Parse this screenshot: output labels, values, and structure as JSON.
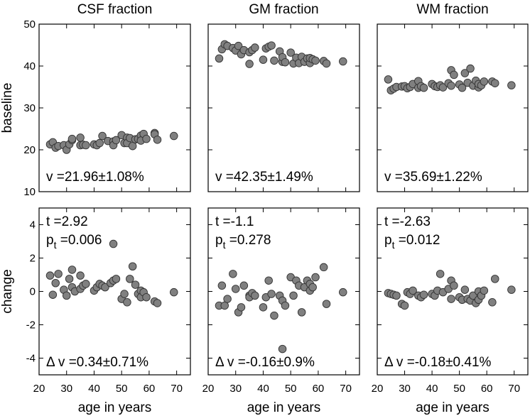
{
  "colors": {
    "marker_fill": "#808080",
    "marker_edge": "#333333",
    "axis": "#000000"
  },
  "chart_data": {
    "type": "scatter",
    "layout": "2x3 grid",
    "columns": [
      "CSF fraction",
      "GM fraction",
      "WM fraction"
    ],
    "xlabel": "age in years",
    "xlim": [
      20,
      75
    ],
    "xticks": [
      20,
      30,
      40,
      50,
      60,
      70
    ],
    "rows": [
      {
        "ylabel": "baseline",
        "ylim": [
          10,
          50
        ],
        "yticks": [
          10,
          20,
          30,
          40,
          50
        ]
      },
      {
        "ylabel": "change",
        "ylim": [
          -5,
          5
        ],
        "yticks": [
          -4,
          -2,
          0,
          2,
          4
        ]
      }
    ],
    "panels": [
      {
        "row": 0,
        "col": 0,
        "stat_v": "v =21.96±1.08%",
        "points": [
          [
            24,
            21.3
          ],
          [
            25,
            21.8
          ],
          [
            26,
            20.5
          ],
          [
            27,
            20.9
          ],
          [
            29,
            21.1
          ],
          [
            30,
            20.0
          ],
          [
            31,
            21.3
          ],
          [
            32,
            22.3
          ],
          [
            32,
            22.6
          ],
          [
            35,
            21.1
          ],
          [
            35,
            22.9
          ],
          [
            36,
            21.2
          ],
          [
            37,
            21.1
          ],
          [
            40,
            21.3
          ],
          [
            41,
            21.1
          ],
          [
            42,
            21.6
          ],
          [
            43,
            23.3
          ],
          [
            45,
            22.1
          ],
          [
            47,
            22.0
          ],
          [
            47,
            21.1
          ],
          [
            48,
            22.3
          ],
          [
            50,
            23.5
          ],
          [
            51,
            21.6
          ],
          [
            52,
            22.9
          ],
          [
            52,
            21.6
          ],
          [
            53,
            22.8
          ],
          [
            54,
            20.9
          ],
          [
            55,
            22.5
          ],
          [
            56,
            22.6
          ],
          [
            57,
            23.4
          ],
          [
            57,
            22.2
          ],
          [
            58,
            23.8
          ],
          [
            59,
            22.6
          ],
          [
            62,
            24.0
          ],
          [
            62,
            23.7
          ],
          [
            63,
            22.4
          ],
          [
            69,
            23.3
          ]
        ]
      },
      {
        "row": 0,
        "col": 1,
        "stat_v": "v =42.35±1.49%",
        "points": [
          [
            24,
            41.8
          ],
          [
            25,
            44.0
          ],
          [
            26,
            45.2
          ],
          [
            27,
            44.8
          ],
          [
            29,
            44.3
          ],
          [
            30,
            43.7
          ],
          [
            31,
            44.8
          ],
          [
            32,
            42.8
          ],
          [
            33,
            43.8
          ],
          [
            35,
            43.3
          ],
          [
            35,
            40.5
          ],
          [
            36,
            43.8
          ],
          [
            37,
            44.4
          ],
          [
            40,
            41.5
          ],
          [
            41,
            44.2
          ],
          [
            42,
            44.6
          ],
          [
            43,
            44.9
          ],
          [
            44,
            41.3
          ],
          [
            46,
            43.5
          ],
          [
            47,
            41.0
          ],
          [
            47,
            42.1
          ],
          [
            48,
            40.9
          ],
          [
            50,
            43.2
          ],
          [
            51,
            40.6
          ],
          [
            52,
            42.0
          ],
          [
            53,
            40.7
          ],
          [
            54,
            42.2
          ],
          [
            55,
            41.0
          ],
          [
            56,
            41.8
          ],
          [
            57,
            40.7
          ],
          [
            57,
            41.9
          ],
          [
            58,
            41.6
          ],
          [
            59,
            41.3
          ],
          [
            62,
            41.2
          ],
          [
            63,
            40.6
          ],
          [
            69,
            41.1
          ]
        ]
      },
      {
        "row": 0,
        "col": 2,
        "stat_v": "v =35.69±1.22%",
        "points": [
          [
            24,
            36.8
          ],
          [
            25,
            34.2
          ],
          [
            26,
            34.6
          ],
          [
            27,
            35.0
          ],
          [
            29,
            35.1
          ],
          [
            30,
            35.2
          ],
          [
            31,
            34.7
          ],
          [
            32,
            35.0
          ],
          [
            33,
            35.7
          ],
          [
            35,
            34.8
          ],
          [
            35,
            36.4
          ],
          [
            36,
            35.2
          ],
          [
            37,
            34.8
          ],
          [
            40,
            35.7
          ],
          [
            41,
            35.2
          ],
          [
            42,
            35.0
          ],
          [
            43,
            35.4
          ],
          [
            44,
            34.9
          ],
          [
            46,
            35.9
          ],
          [
            47,
            39.0
          ],
          [
            47,
            35.3
          ],
          [
            48,
            37.9
          ],
          [
            50,
            35.6
          ],
          [
            51,
            34.8
          ],
          [
            52,
            38.3
          ],
          [
            53,
            36.0
          ],
          [
            54,
            39.4
          ],
          [
            55,
            35.3
          ],
          [
            56,
            36.5
          ],
          [
            57,
            34.9
          ],
          [
            57,
            35.7
          ],
          [
            58,
            35.4
          ],
          [
            59,
            36.3
          ],
          [
            62,
            36.3
          ],
          [
            63,
            35.9
          ],
          [
            69,
            35.4
          ]
        ]
      },
      {
        "row": 1,
        "col": 0,
        "stat_t": "t =2.92",
        "stat_p_prefix": "p",
        "stat_p_sub": "t",
        "stat_p_value": " =0.006",
        "stat_dv": "Δ v =0.34±0.71%",
        "points": [
          [
            24,
            0.95
          ],
          [
            25,
            -0.2
          ],
          [
            26,
            0.5
          ],
          [
            27,
            1.05
          ],
          [
            29,
            0.1
          ],
          [
            30,
            -0.25
          ],
          [
            31,
            0.75
          ],
          [
            32,
            1.3
          ],
          [
            32,
            0.25
          ],
          [
            33,
            0.0
          ],
          [
            35,
            0.95
          ],
          [
            35,
            0.15
          ],
          [
            36,
            0.35
          ],
          [
            37,
            0.45
          ],
          [
            40,
            0.05
          ],
          [
            41,
            0.25
          ],
          [
            42,
            0.45
          ],
          [
            43,
            0.35
          ],
          [
            44,
            0.25
          ],
          [
            46,
            0.5
          ],
          [
            47,
            2.85
          ],
          [
            47,
            0.65
          ],
          [
            48,
            0.75
          ],
          [
            50,
            -0.45
          ],
          [
            51,
            -0.15
          ],
          [
            52,
            -0.65
          ],
          [
            53,
            0.75
          ],
          [
            54,
            1.5
          ],
          [
            55,
            0.4
          ],
          [
            56,
            -0.15
          ],
          [
            57,
            0.05
          ],
          [
            57,
            -0.35
          ],
          [
            58,
            -0.05
          ],
          [
            59,
            -0.35
          ],
          [
            62,
            -0.6
          ],
          [
            63,
            -0.7
          ],
          [
            69,
            -0.05
          ]
        ]
      },
      {
        "row": 1,
        "col": 1,
        "stat_t": "t =-1.1",
        "stat_p_prefix": "p",
        "stat_p_sub": "t",
        "stat_p_value": " =0.278",
        "stat_dv": "Δ v =-0.16±0.9%",
        "points": [
          [
            24,
            -0.85
          ],
          [
            25,
            0.35
          ],
          [
            26,
            -0.85
          ],
          [
            27,
            -0.45
          ],
          [
            29,
            1.05
          ],
          [
            30,
            0.15
          ],
          [
            31,
            -1.25
          ],
          [
            32,
            -0.95
          ],
          [
            33,
            0.35
          ],
          [
            35,
            -0.25
          ],
          [
            35,
            -0.35
          ],
          [
            36,
            -0.1
          ],
          [
            37,
            -0.25
          ],
          [
            40,
            -0.95
          ],
          [
            41,
            -0.35
          ],
          [
            42,
            0.65
          ],
          [
            43,
            -0.15
          ],
          [
            44,
            -1.45
          ],
          [
            46,
            -0.25
          ],
          [
            47,
            -3.45
          ],
          [
            47,
            -0.55
          ],
          [
            48,
            -0.85
          ],
          [
            50,
            0.85
          ],
          [
            51,
            -0.25
          ],
          [
            52,
            0.65
          ],
          [
            53,
            0.35
          ],
          [
            54,
            -1.25
          ],
          [
            55,
            0.25
          ],
          [
            56,
            0.65
          ],
          [
            57,
            0.05
          ],
          [
            57,
            0.45
          ],
          [
            58,
            0.25
          ],
          [
            59,
            0.85
          ],
          [
            62,
            1.45
          ],
          [
            63,
            -0.75
          ],
          [
            69,
            -0.05
          ]
        ]
      },
      {
        "row": 1,
        "col": 2,
        "stat_t": "t =-2.63",
        "stat_p_prefix": "p",
        "stat_p_sub": "t",
        "stat_p_value": " =0.012",
        "stat_dv": "Δ v =-0.18±0.41%",
        "points": [
          [
            24,
            -0.1
          ],
          [
            25,
            -0.15
          ],
          [
            26,
            -0.2
          ],
          [
            27,
            -0.25
          ],
          [
            29,
            -0.75
          ],
          [
            30,
            -0.85
          ],
          [
            31,
            -0.05
          ],
          [
            32,
            -0.15
          ],
          [
            33,
            0.05
          ],
          [
            35,
            -0.25
          ],
          [
            36,
            -0.35
          ],
          [
            37,
            -0.2
          ],
          [
            40,
            -0.15
          ],
          [
            41,
            -0.25
          ],
          [
            42,
            0.05
          ],
          [
            43,
            1.05
          ],
          [
            44,
            -0.05
          ],
          [
            46,
            0.15
          ],
          [
            47,
            0.65
          ],
          [
            47,
            -0.45
          ],
          [
            48,
            0.35
          ],
          [
            50,
            -0.35
          ],
          [
            51,
            -0.5
          ],
          [
            52,
            0.1
          ],
          [
            53,
            -0.45
          ],
          [
            54,
            -0.55
          ],
          [
            55,
            -0.25
          ],
          [
            56,
            -0.7
          ],
          [
            57,
            -0.5
          ],
          [
            57,
            0.0
          ],
          [
            58,
            -0.25
          ],
          [
            59,
            0.05
          ],
          [
            62,
            -0.65
          ],
          [
            63,
            0.75
          ],
          [
            69,
            0.1
          ]
        ]
      }
    ]
  }
}
